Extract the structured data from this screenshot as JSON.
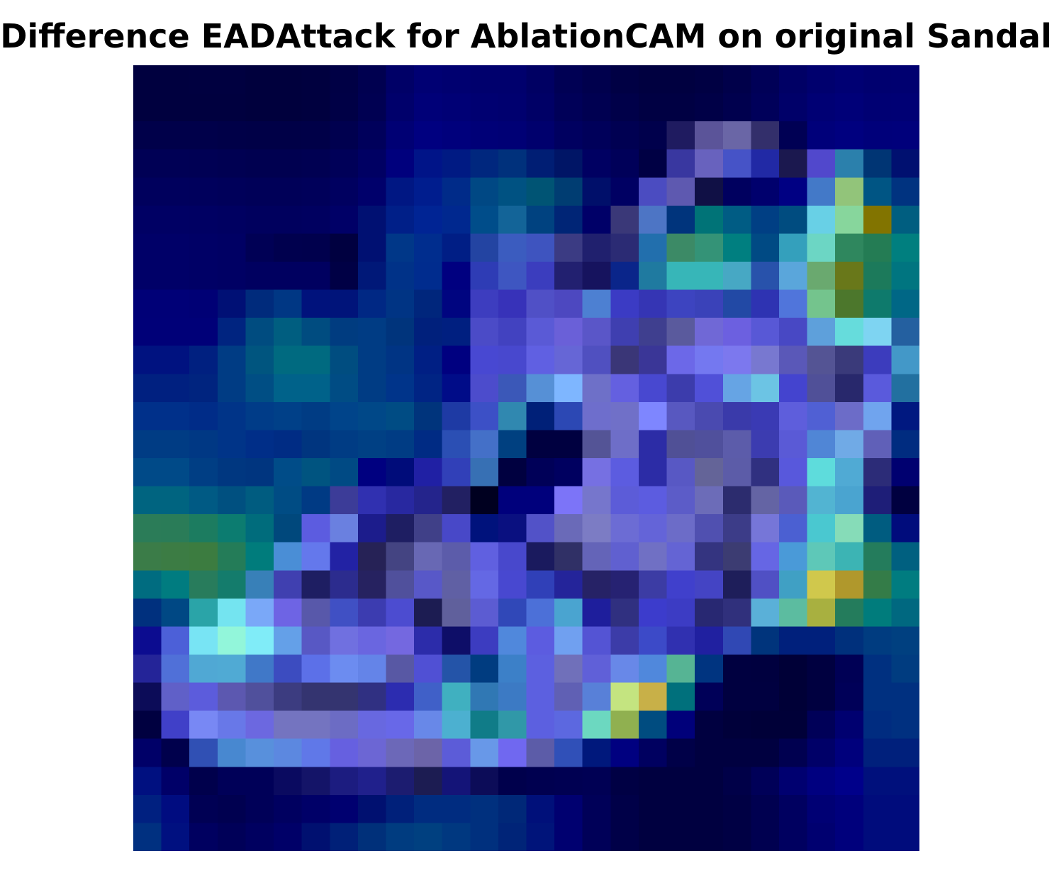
{
  "title": "Difference EADAttack for AblationCAM on original Sandal",
  "chart_data": {
    "type": "heatmap",
    "title": "Difference EADAttack for AblationCAM on original Sandal",
    "xlabel": "",
    "ylabel": "",
    "axes_visible": false,
    "grid": false,
    "legend": "none",
    "rows": 28,
    "cols": 28,
    "colors": [
      [
        "#00003f",
        "#00003f",
        "#000040",
        "#000040",
        "#00003d",
        "#00003d",
        "#00003f",
        "#000045",
        "#000050",
        "#000067",
        "#000073",
        "#000070",
        "#00006d",
        "#00006d",
        "#000063",
        "#000054",
        "#00004d",
        "#000044",
        "#000040",
        "#000040",
        "#000043",
        "#00004a",
        "#000057",
        "#000065",
        "#00006e",
        "#000073",
        "#00006f",
        "#000070"
      ],
      [
        "#00003f",
        "#00003f",
        "#00003f",
        "#00003f",
        "#00003d",
        "#00003d",
        "#00003f",
        "#000046",
        "#000052",
        "#00006b",
        "#000078",
        "#000075",
        "#000071",
        "#00006f",
        "#000066",
        "#000058",
        "#000051",
        "#000049",
        "#000043",
        "#000043",
        "#000047",
        "#00004e",
        "#00005a",
        "#000069",
        "#000074",
        "#000078",
        "#000073",
        "#000074"
      ],
      [
        "#00004a",
        "#00004a",
        "#00004a",
        "#000048",
        "#000047",
        "#000047",
        "#000048",
        "#00004f",
        "#00005b",
        "#000074",
        "#000080",
        "#00007c",
        "#000077",
        "#000075",
        "#00006d",
        "#000060",
        "#00005a",
        "#000052",
        "#00004c",
        "#1f1b60",
        "#5b5499",
        "#6a66a6",
        "#332f6b",
        "#000054",
        "#00007a",
        "#00007f",
        "#00007a",
        "#00007b"
      ],
      [
        "#000055",
        "#000055",
        "#000054",
        "#000052",
        "#000050",
        "#000050",
        "#000052",
        "#000058",
        "#000063",
        "#00007d",
        "#001488",
        "#001a83",
        "#00277e",
        "#00317c",
        "#001e74",
        "#001566",
        "#000062",
        "#000059",
        "#000044",
        "#3937a0",
        "#6862be",
        "#4653c7",
        "#2129a5",
        "#1b184f",
        "#5148cc",
        "#2b80ac",
        "#003574",
        "#001070"
      ],
      [
        "#00005d",
        "#00005d",
        "#00005c",
        "#00005a",
        "#000058",
        "#000058",
        "#00005a",
        "#000060",
        "#00006b",
        "#001783",
        "#001d8e",
        "#002b89",
        "#004884",
        "#005282",
        "#005474",
        "#003d72",
        "#000f6a",
        "#000063",
        "#4b4cc1",
        "#5e59b0",
        "#101045",
        "#00005f",
        "#00006d",
        "#000083",
        "#4379c8",
        "#92c47a",
        "#005584",
        "#003380"
      ],
      [
        "#000064",
        "#000064",
        "#000063",
        "#000061",
        "#00005e",
        "#00005e",
        "#000060",
        "#000067",
        "#001072",
        "#001f88",
        "#002494",
        "#00288f",
        "#004d8a",
        "#136498",
        "#004280",
        "#002576",
        "#000068",
        "#3a3878",
        "#4d75c5",
        "#00347c",
        "#007377",
        "#005c84",
        "#003f84",
        "#004c80",
        "#68d0e6",
        "#87d69c",
        "#827400",
        "#005e80"
      ],
      [
        "#000068",
        "#000068",
        "#000066",
        "#000064",
        "#000055",
        "#00004e",
        "#00004d",
        "#000040",
        "#001072",
        "#003788",
        "#002d8e",
        "#001e85",
        "#2344a2",
        "#3b5cbf",
        "#3e54bf",
        "#3b3b83",
        "#20206e",
        "#2b2b74",
        "#226fad",
        "#3c8a66",
        "#349377",
        "#007f80",
        "#004a84",
        "#34a0bc",
        "#6cd6c4",
        "#2f875e",
        "#247c54",
        "#007f7f"
      ],
      [
        "#000068",
        "#000068",
        "#000066",
        "#000064",
        "#000060",
        "#000060",
        "#000060",
        "#000045",
        "#001878",
        "#003288",
        "#002c8e",
        "#000080",
        "#2e3cb5",
        "#3e56c1",
        "#3b3dbe",
        "#222070",
        "#16135e",
        "#0a258a",
        "#1f7aa0",
        "#37b6b8",
        "#37b6b8",
        "#47a8c4",
        "#2852ab",
        "#5aa6db",
        "#6aa96f",
        "#69781a",
        "#1c7a5b",
        "#007580"
      ],
      [
        "#000077",
        "#000077",
        "#000075",
        "#001075",
        "#002b7c",
        "#003784",
        "#00127c",
        "#00147a",
        "#002884",
        "#003484",
        "#00267c",
        "#000580",
        "#3d3dbf",
        "#3732b9",
        "#5050c6",
        "#4d48c0",
        "#4d80d2",
        "#3b3bc4",
        "#3535b4",
        "#3d44c0",
        "#3a42b9",
        "#2249a5",
        "#2e33b2",
        "#5075db",
        "#74c48d",
        "#4c772c",
        "#0e7a6c",
        "#006786"
      ],
      [
        "#000078",
        "#000078",
        "#000078",
        "#002480",
        "#004c80",
        "#005e80",
        "#004c80",
        "#003c80",
        "#003c84",
        "#00347c",
        "#00207c",
        "#001f80",
        "#4b4bc7",
        "#4242c0",
        "#5a5ad6",
        "#6a60d8",
        "#5a56c8",
        "#3f3fb0",
        "#3f3f8f",
        "#5a5a9d",
        "#7068d6",
        "#6c60e0",
        "#5858d6",
        "#4848c4",
        "#5ea0db",
        "#66dcdc",
        "#7ed4f2",
        "#2460a0"
      ],
      [
        "#001280",
        "#001280",
        "#002080",
        "#003c84",
        "#00557f",
        "#006a80",
        "#006a80",
        "#004d80",
        "#003c84",
        "#003484",
        "#001f84",
        "#000080",
        "#4848d2",
        "#4848ce",
        "#6060e2",
        "#6666d6",
        "#5050c0",
        "#3a3677",
        "#3a3697",
        "#6c68e8",
        "#7478f0",
        "#7c78ee",
        "#7878d0",
        "#5a58b8",
        "#545494",
        "#3a3a7a",
        "#3c3cbd",
        "#4398c8"
      ],
      [
        "#002080",
        "#002080",
        "#00247f",
        "#003c84",
        "#004e84",
        "#00628a",
        "#00628a",
        "#004c84",
        "#003c84",
        "#00348a",
        "#002484",
        "#000c88",
        "#4c4ccc",
        "#3b58b8",
        "#5690d6",
        "#7eb6ff",
        "#6e70c8",
        "#6460e0",
        "#4848d0",
        "#3c3cac",
        "#5050d8",
        "#66a4e4",
        "#6cc4e4",
        "#4444cf",
        "#505098",
        "#28286c",
        "#5a5adc",
        "#2270a0"
      ],
      [
        "#00308a",
        "#00308a",
        "#002c88",
        "#003488",
        "#003c88",
        "#004088",
        "#003c84",
        "#00448a",
        "#004888",
        "#004c84",
        "#00347c",
        "#1e3aa4",
        "#3c50c6",
        "#3088b0",
        "#002078",
        "#2c48b4",
        "#6e6ecc",
        "#7070c8",
        "#7e86ff",
        "#5858c0",
        "#4a4ab0",
        "#3a3aaa",
        "#3a3ab4",
        "#5e5edc",
        "#5060d4",
        "#6c6cc8",
        "#70a4ee",
        "#001880"
      ],
      [
        "#003c84",
        "#003c84",
        "#003884",
        "#003488",
        "#002e88",
        "#002c84",
        "#00357f",
        "#003c84",
        "#004084",
        "#003c84",
        "#002b84",
        "#2b4fb4",
        "#4470c8",
        "#004080",
        "#000040",
        "#000040",
        "#545496",
        "#6e6ec8",
        "#2c2ca6",
        "#505096",
        "#50509c",
        "#5c5caa",
        "#3c3cb0",
        "#5a5ad6",
        "#5086d6",
        "#70aae6",
        "#6060b8",
        "#002c80"
      ],
      [
        "#004a88",
        "#004a88",
        "#003e84",
        "#003780",
        "#00357f",
        "#004c88",
        "#005480",
        "#004a84",
        "#000080",
        "#000c7a",
        "#2020a4",
        "#3140b8",
        "#3770b4",
        "#000040",
        "#000058",
        "#000060",
        "#7670e2",
        "#5c5ce0",
        "#2c2ca6",
        "#5858c4",
        "#646498",
        "#5c5ca8",
        "#303080",
        "#5858dc",
        "#5edcdc",
        "#50aad4",
        "#2c2c78",
        "#000070"
      ],
      [
        "#006480",
        "#006480",
        "#005a84",
        "#005080",
        "#005c80",
        "#004c84",
        "#003a84",
        "#3c3c98",
        "#3030b0",
        "#2828a0",
        "#24248c",
        "#222062",
        "#000020",
        "#00007c",
        "#00007c",
        "#7c74f8",
        "#7676cc",
        "#5c5cd8",
        "#5c5ce0",
        "#5c5cc8",
        "#6c6cb8",
        "#2c2c6e",
        "#6464a4",
        "#5a5aba",
        "#52b4d2",
        "#4aa4d0",
        "#1e1e78",
        "#000040"
      ],
      [
        "#2b7c58",
        "#2a7c58",
        "#1c7c60",
        "#0c7c70",
        "#006c7c",
        "#00487c",
        "#5c5ce0",
        "#6a80e0",
        "#1c1c8c",
        "#1e1e62",
        "#404088",
        "#4848c8",
        "#00127c",
        "#0a1080",
        "#5252c8",
        "#6a6ab8",
        "#7c7cc4",
        "#6c6cd4",
        "#6464d8",
        "#6c6cc8",
        "#5050b0",
        "#3c3c88",
        "#7676d8",
        "#4b60d2",
        "#4ac8d0",
        "#86dcb8",
        "#005c80",
        "#000c7c"
      ],
      [
        "#3b7c48",
        "#3c7c44",
        "#3c7c40",
        "#247c58",
        "#007c7c",
        "#4a8ed6",
        "#6478ec",
        "#2222a4",
        "#262256",
        "#444482",
        "#6868b4",
        "#5c5caa",
        "#6060e0",
        "#4848cc",
        "#1a1a5e",
        "#303066",
        "#6464b8",
        "#6060d0",
        "#7070c4",
        "#6464d4",
        "#343480",
        "#3c3c72",
        "#6666e4",
        "#4a9ad8",
        "#5ec8b8",
        "#3cb4b4",
        "#247c5c",
        "#006080"
      ],
      [
        "#006c80",
        "#007c80",
        "#287c5c",
        "#147c6c",
        "#3880b8",
        "#4040b0",
        "#1e1e62",
        "#2c2c8e",
        "#262260",
        "#50509c",
        "#5858c8",
        "#6060a4",
        "#6468e4",
        "#4848d0",
        "#3040b8",
        "#24249a",
        "#262266",
        "#262272",
        "#3c3ca4",
        "#4040cc",
        "#4444c4",
        "#1e1e5a",
        "#5050c4",
        "#40a0c4",
        "#d0c84c",
        "#b0982c",
        "#347c48",
        "#007c80"
      ],
      [
        "#00307e",
        "#004884",
        "#2aa4a8",
        "#74e4f0",
        "#7aa8f8",
        "#6e64e4",
        "#5858aa",
        "#4050c4",
        "#3c3cb0",
        "#4c4cd0",
        "#1c1c52",
        "#60609c",
        "#5c5cd2",
        "#3048b8",
        "#4c70d8",
        "#4aa4d0",
        "#1e1e9c",
        "#303080",
        "#3c3ccc",
        "#3c3cc4",
        "#282872",
        "#30307c",
        "#5ab0d8",
        "#5cbca0",
        "#a8b040",
        "#247c5c",
        "#007c7c",
        "#006880"
      ],
      [
        "#0c0c90",
        "#4c60d8",
        "#78e4f4",
        "#92f6da",
        "#80ecf8",
        "#64a0e8",
        "#5858c4",
        "#7070e0",
        "#6a66e0",
        "#7468e0",
        "#2c2caa",
        "#0e0e68",
        "#3c3cc0",
        "#5088dc",
        "#5c5ce0",
        "#70a0f0",
        "#5454d4",
        "#3c3ca8",
        "#3c4ac8",
        "#3030b0",
        "#2020a0",
        "#3048b4",
        "#00347c",
        "#00207c",
        "#00207c",
        "#00307c",
        "#003c80",
        "#004080"
      ],
      [
        "#242498",
        "#5070d8",
        "#50a8d4",
        "#50aad4",
        "#4078c8",
        "#3c4cc0",
        "#5c70e8",
        "#6c8cf0",
        "#6484e8",
        "#5858a4",
        "#5050d4",
        "#2454a8",
        "#003c80",
        "#3c80c8",
        "#5c60e0",
        "#7070ba",
        "#6060d8",
        "#6888e8",
        "#5088dc",
        "#56b494",
        "#003480",
        "#000040",
        "#00003f",
        "#000037",
        "#000040",
        "#000055",
        "#003080",
        "#003c80"
      ],
      [
        "#0c0c58",
        "#6060c8",
        "#5c5cdc",
        "#5c58b0",
        "#50509c",
        "#3c3c80",
        "#343470",
        "#343470",
        "#303082",
        "#2c2cb0",
        "#4060c8",
        "#40b0c0",
        "#3078b4",
        "#3c7ac4",
        "#5c60e0",
        "#6060b4",
        "#5880d8",
        "#c4e480",
        "#c8b048",
        "#00707c",
        "#000058",
        "#000040",
        "#000040",
        "#000037",
        "#000040",
        "#000058",
        "#003080",
        "#003080"
      ],
      [
        "#000040",
        "#4040c8",
        "#7888f4",
        "#6878e8",
        "#6c68e0",
        "#7474c0",
        "#7474c0",
        "#6c6cc4",
        "#6868e0",
        "#6868e8",
        "#6888e8",
        "#4cb0d0",
        "#107c88",
        "#3098a8",
        "#5c60e0",
        "#5c68e0",
        "#6cd8c0",
        "#90b050",
        "#004c80",
        "#00007a",
        "#000040",
        "#00003a",
        "#000038",
        "#000038",
        "#000058",
        "#000070",
        "#002c80",
        "#003080"
      ],
      [
        "#000068",
        "#00004c",
        "#3050b4",
        "#4888d0",
        "#5890dc",
        "#5c88e0",
        "#6078e8",
        "#6660e0",
        "#6c66d4",
        "#6c68b8",
        "#6c64a8",
        "#5c5cd8",
        "#6898e8",
        "#7068f0",
        "#5c5ca8",
        "#3050b8",
        "#00187c",
        "#000080",
        "#000060",
        "#000048",
        "#000040",
        "#000040",
        "#000040",
        "#000050",
        "#000068",
        "#00007c",
        "#00207c",
        "#00207c"
      ],
      [
        "#001080",
        "#000068",
        "#00004c",
        "#000058",
        "#000058",
        "#0a0a60",
        "#141468",
        "#1c1c80",
        "#20208c",
        "#1c1c70",
        "#1c1c52",
        "#141478",
        "#0c0c58",
        "#00004c",
        "#000050",
        "#000052",
        "#000054",
        "#000044",
        "#000040",
        "#000040",
        "#000040",
        "#000048",
        "#000058",
        "#000070",
        "#000080",
        "#00008a",
        "#00107c",
        "#00107c"
      ],
      [
        "#002080",
        "#000c80",
        "#000054",
        "#000050",
        "#000058",
        "#000060",
        "#000068",
        "#000070",
        "#001070",
        "#00207a",
        "#002c80",
        "#002c80",
        "#00307e",
        "#002878",
        "#00107a",
        "#000070",
        "#000058",
        "#000048",
        "#000040",
        "#000040",
        "#000040",
        "#000044",
        "#000050",
        "#000060",
        "#000074",
        "#00007c",
        "#000c7c",
        "#000c7c"
      ],
      [
        "#003080",
        "#001080",
        "#000060",
        "#000058",
        "#000060",
        "#000068",
        "#001070",
        "#002078",
        "#00307a",
        "#003c80",
        "#004080",
        "#003880",
        "#00307e",
        "#002478",
        "#00147a",
        "#000070",
        "#000058",
        "#000048",
        "#000040",
        "#000040",
        "#000040",
        "#000044",
        "#000050",
        "#000060",
        "#000070",
        "#00007c",
        "#000c7c",
        "#000c7c"
      ]
    ]
  }
}
